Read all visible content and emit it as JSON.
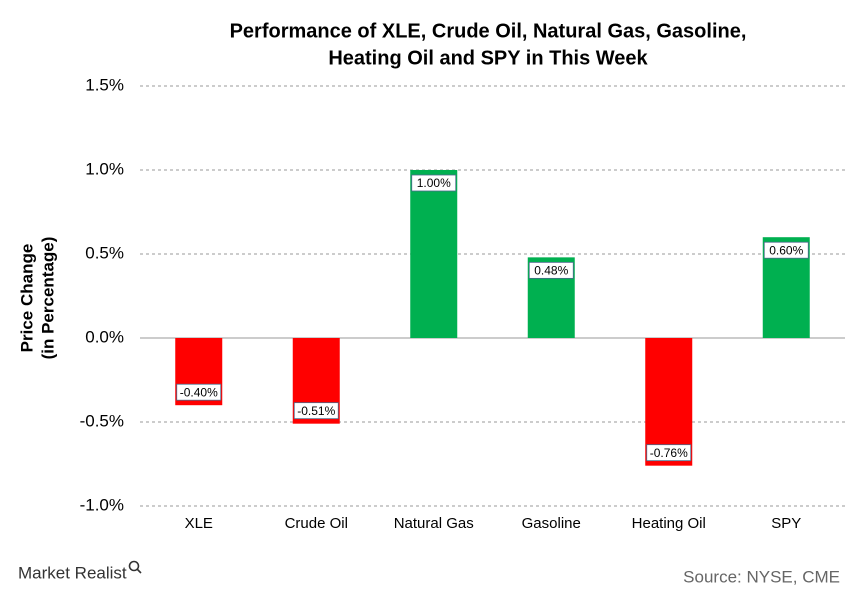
{
  "chart_data": {
    "type": "bar",
    "title": [
      "Performance of XLE, Crude Oil, Natural Gas, Gasoline,",
      "Heating Oil and SPY in This Week"
    ],
    "ylabel": [
      "Price Change",
      "(in Percentage)"
    ],
    "categories": [
      "XLE",
      "Crude Oil",
      "Natural Gas",
      "Gasoline",
      "Heating Oil",
      "SPY"
    ],
    "values": [
      -0.4,
      -0.51,
      1.0,
      0.48,
      -0.76,
      0.6
    ],
    "value_labels": [
      "-0.40%",
      "-0.51%",
      "1.00%",
      "0.48%",
      "-0.76%",
      "0.60%"
    ],
    "colors": [
      "#ff0000",
      "#ff0000",
      "#00b050",
      "#00b050",
      "#ff0000",
      "#00b050"
    ],
    "ylim": [
      -1.0,
      1.5
    ],
    "yticks": [
      {
        "value": -1.0,
        "label": "-1.0%"
      },
      {
        "value": -0.5,
        "label": "-0.5%"
      },
      {
        "value": 0,
        "label": "0.0%"
      },
      {
        "value": 0.5,
        "label": "0.5%"
      },
      {
        "value": 1.0,
        "label": "1.0%"
      },
      {
        "value": 1.5,
        "label": "1.5%"
      }
    ],
    "grid": true,
    "source": "Source:  NYSE, CME",
    "logo": "Market Realist"
  }
}
